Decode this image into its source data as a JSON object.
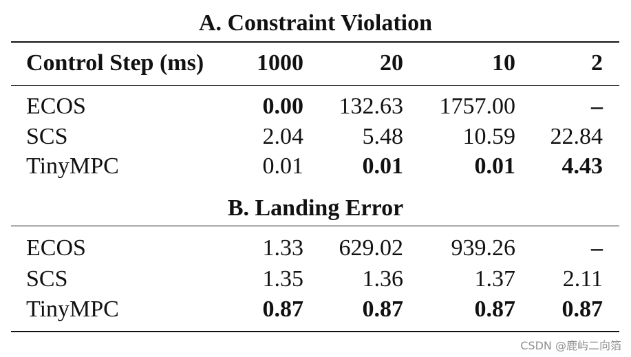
{
  "table": {
    "section_a_title": "A. Constraint Violation",
    "section_b_title": "B. Landing Error",
    "header": [
      "Control Step (ms)",
      "1000",
      "20",
      "10",
      "2"
    ],
    "section_a_rows": [
      {
        "label": "ECOS",
        "values": [
          "0.00",
          "132.63",
          "1757.00",
          "–"
        ],
        "bold": [
          true,
          false,
          false,
          true
        ]
      },
      {
        "label": "SCS",
        "values": [
          "2.04",
          "5.48",
          "10.59",
          "22.84"
        ],
        "bold": [
          false,
          false,
          false,
          false
        ]
      },
      {
        "label": "TinyMPC",
        "values": [
          "0.01",
          "0.01",
          "0.01",
          "4.43"
        ],
        "bold": [
          false,
          true,
          true,
          true
        ]
      }
    ],
    "section_b_rows": [
      {
        "label": "ECOS",
        "values": [
          "1.33",
          "629.02",
          "939.26",
          "–"
        ],
        "bold": [
          false,
          false,
          false,
          true
        ]
      },
      {
        "label": "SCS",
        "values": [
          "1.35",
          "1.36",
          "1.37",
          "2.11"
        ],
        "bold": [
          false,
          false,
          false,
          false
        ]
      },
      {
        "label": "TinyMPC",
        "values": [
          "0.87",
          "0.87",
          "0.87",
          "0.87"
        ],
        "bold": [
          true,
          true,
          true,
          true
        ]
      }
    ]
  },
  "watermark": "CSDN @鹿屿二向箔"
}
